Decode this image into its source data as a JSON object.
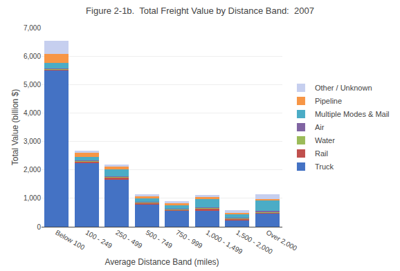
{
  "chart_data": {
    "type": "bar",
    "title": "Figure 2-1b.  Total Freight Value by Distance Band:  2007",
    "xlabel": "Average Distance Band (miles)",
    "ylabel": "Total Value (billion $)",
    "categories": [
      "Below 100",
      "100 - 249",
      "250 - 499",
      "500 - 749",
      "750 - 999",
      "1,000 - 1,499",
      "1,500 - 2,000",
      "Over 2,000"
    ],
    "series": [
      {
        "name": "Truck",
        "color": "#4472C4",
        "values": [
          5500,
          2230,
          1650,
          790,
          550,
          570,
          240,
          460
        ]
      },
      {
        "name": "Rail",
        "color": "#C0504D",
        "values": [
          30,
          60,
          80,
          60,
          50,
          80,
          40,
          50
        ]
      },
      {
        "name": "Water",
        "color": "#9BBB59",
        "values": [
          30,
          30,
          30,
          20,
          20,
          30,
          20,
          20
        ]
      },
      {
        "name": "Air",
        "color": "#8064A2",
        "values": [
          10,
          10,
          10,
          10,
          10,
          10,
          10,
          40
        ]
      },
      {
        "name": "Multiple Modes & Mail",
        "color": "#4BACC6",
        "values": [
          180,
          130,
          250,
          120,
          130,
          290,
          120,
          350
        ]
      },
      {
        "name": "Pipeline",
        "color": "#F79646",
        "values": [
          330,
          130,
          100,
          70,
          60,
          60,
          50,
          50
        ]
      },
      {
        "name": "Other / Unknown",
        "color": "#C6CFEF",
        "values": [
          470,
          80,
          70,
          70,
          80,
          90,
          100,
          180
        ]
      }
    ],
    "stacked": true,
    "ylim": [
      0,
      7000
    ],
    "yticks": [
      0,
      {
        "value": 1000,
        "label": "1,000"
      },
      {
        "value": 2000,
        "label": "2,000"
      },
      {
        "value": 3000,
        "label": "3,000"
      },
      {
        "value": 4000,
        "label": "4,000"
      },
      {
        "value": 5000,
        "label": "5,000"
      },
      {
        "value": 6000,
        "label": "6,000"
      },
      {
        "value": 7000,
        "label": "7,000"
      }
    ],
    "grid": true,
    "legend": "right"
  }
}
